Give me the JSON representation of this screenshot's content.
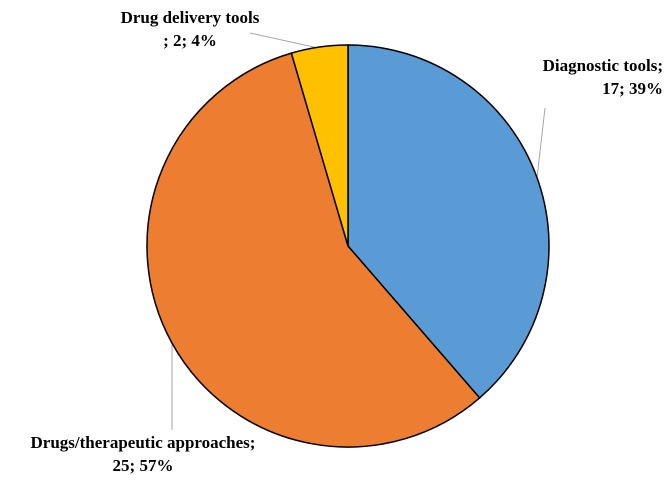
{
  "chart_data": {
    "type": "pie",
    "values": [
      17,
      25,
      2
    ],
    "percentages": [
      39,
      57,
      4
    ],
    "value_labels": [
      [
        "Diagnostic tools;",
        "17; 39%"
      ],
      [
        "Drugs/therapeutic approaches;",
        "25; 57%"
      ],
      [
        "Drug delivery tools",
        "; 2; 4%"
      ]
    ],
    "colors": [
      "#5b9bd5",
      "#ed7d31",
      "#ffc000"
    ]
  }
}
